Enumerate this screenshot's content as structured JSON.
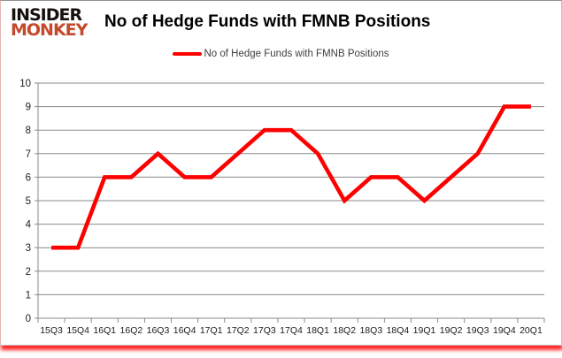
{
  "brand": {
    "line1": "INSIDER",
    "line2": "MONKEY",
    "line1_color": "#15110e",
    "line2_color": "#c5492a"
  },
  "header": {
    "title": "No of Hedge Funds with FMNB Positions"
  },
  "legend": {
    "label": "No of Hedge Funds with FMNB Positions",
    "swatch_color": "#ff0000"
  },
  "chart_data": {
    "type": "line",
    "title": "No of Hedge Funds with FMNB Positions",
    "categories": [
      "15Q3",
      "15Q4",
      "16Q1",
      "16Q2",
      "16Q3",
      "16Q4",
      "17Q1",
      "17Q2",
      "17Q3",
      "17Q4",
      "18Q1",
      "18Q2",
      "18Q3",
      "18Q4",
      "19Q1",
      "19Q2",
      "19Q3",
      "19Q4",
      "20Q1"
    ],
    "series": [
      {
        "name": "No of Hedge Funds with FMNB Positions",
        "color": "#ff0000",
        "values": [
          3,
          3,
          6,
          6,
          7,
          6,
          6,
          7,
          8,
          8,
          7,
          5,
          6,
          6,
          5,
          6,
          7,
          9,
          9
        ]
      }
    ],
    "xlabel": "",
    "ylabel": "",
    "ylim": [
      0,
      10
    ],
    "ytick_step": 1,
    "grid": true,
    "legend_position": "top-center",
    "colors": {
      "gridline": "#8a8a8a",
      "axis": "#8a8a8a",
      "tick_label": "#1c1c1c"
    }
  }
}
